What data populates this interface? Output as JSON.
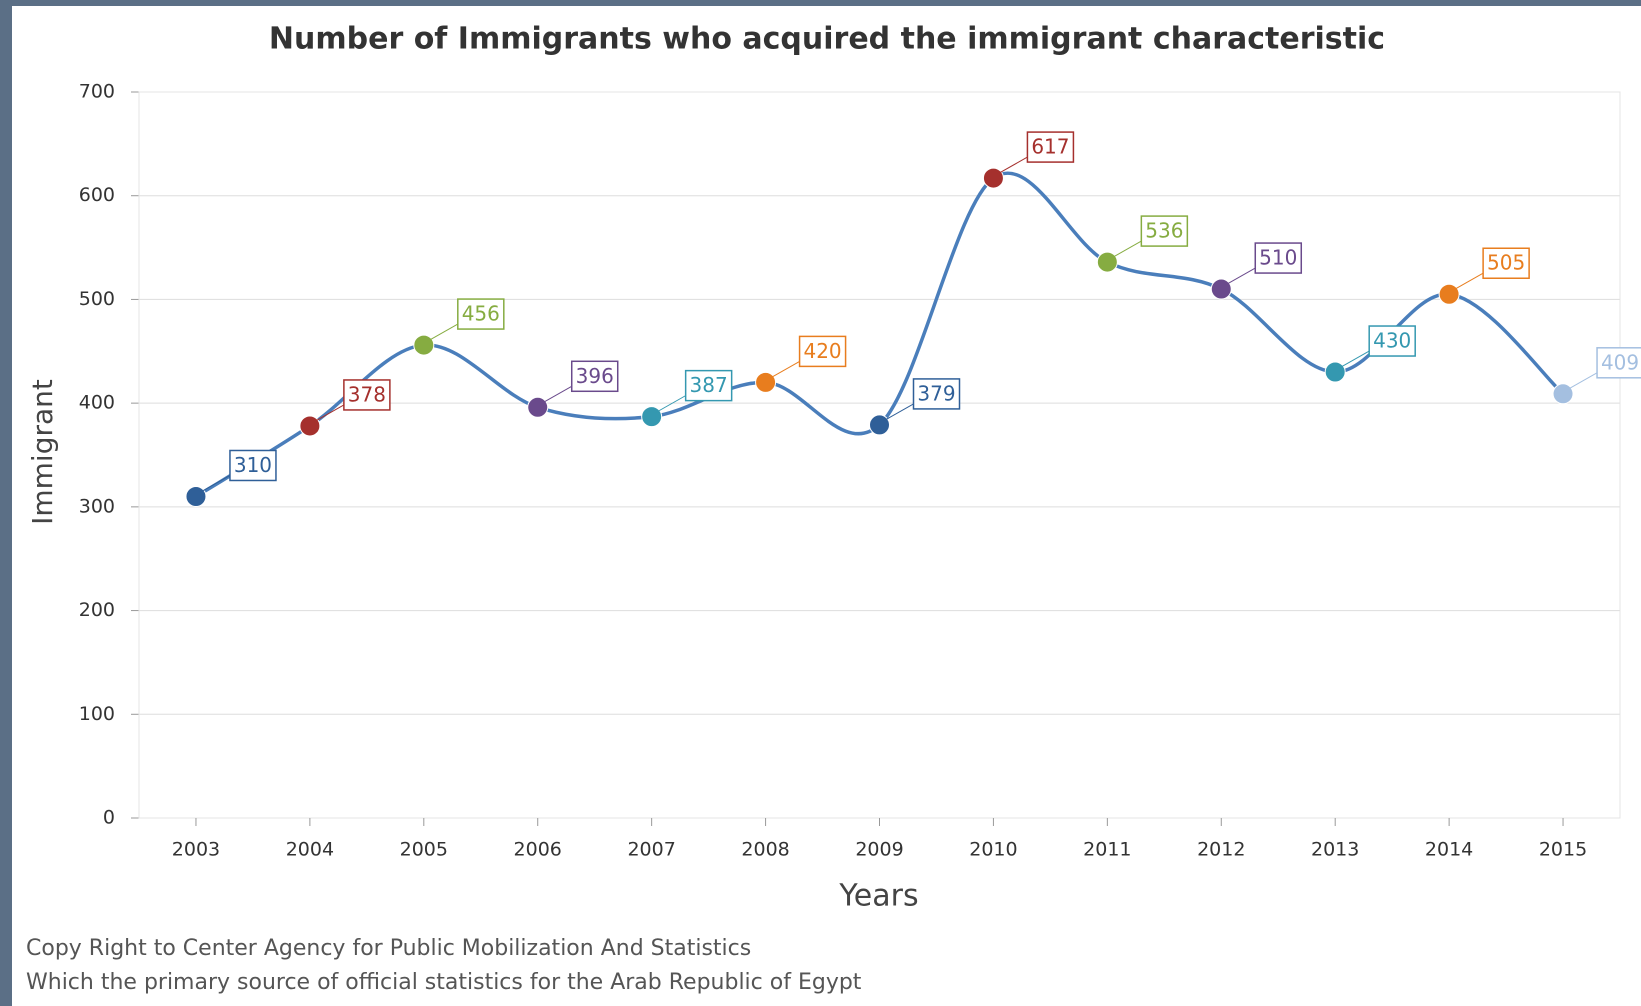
{
  "chart_data": {
    "type": "line",
    "title": "Number of Immigrants who acquired the immigrant characteristic",
    "x_label": "Years",
    "y_label": "Immigrant",
    "categories": [
      "2003",
      "2004",
      "2005",
      "2006",
      "2007",
      "2008",
      "2009",
      "2010",
      "2011",
      "2012",
      "2013",
      "2014",
      "2015"
    ],
    "values": [
      310,
      378,
      456,
      396,
      387,
      420,
      379,
      617,
      536,
      510,
      430,
      505,
      409
    ],
    "color": "#4a7ebb",
    "point_colors": [
      "#2f5f98",
      "#a5302d",
      "#86ac41",
      "#6a4a8c",
      "#3498b0",
      "#e87d1e",
      "#2f5f98",
      "#a5302d",
      "#86ac41",
      "#6a4a8c",
      "#3498b0",
      "#e87d1e",
      "#a4bfe0"
    ],
    "ylim": [
      0,
      700
    ],
    "yticks": [
      0,
      100,
      200,
      300,
      400,
      500,
      600,
      700
    ],
    "grid": true,
    "data_labels": true,
    "footnote": [
      "Copy Right to Center Agency for Public Mobilization And Statistics",
      "Which the primary source of official statistics for the Arab Republic of Egypt"
    ]
  }
}
